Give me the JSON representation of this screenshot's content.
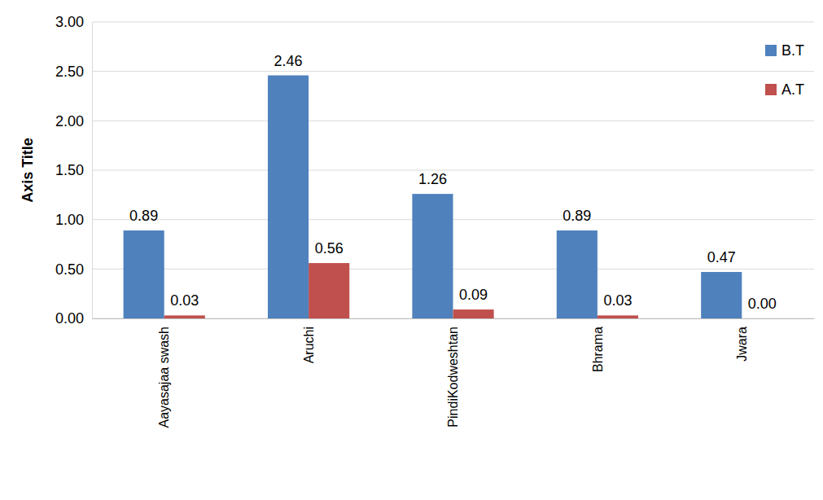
{
  "chart_data": {
    "type": "bar",
    "ylabel": "Axis Title",
    "categories": [
      "Aayasajaa swash",
      "Aruchi",
      "PindiKodweshtan",
      "Bhrama",
      "Jwara"
    ],
    "series": [
      {
        "name": "B.T",
        "color": "#4f81bd",
        "values": [
          0.89,
          2.46,
          1.26,
          0.89,
          0.47
        ],
        "value_labels": [
          "0.89",
          "2.46",
          "1.26",
          "0.89",
          "0.47"
        ]
      },
      {
        "name": "A.T",
        "color": "#c0504d",
        "values": [
          0.03,
          0.56,
          0.09,
          0.03,
          0
        ],
        "value_labels": [
          "0.03",
          "0.56",
          "0.09",
          "0.03",
          "0.00"
        ]
      }
    ],
    "ylim": [
      0,
      3
    ],
    "yticks": [
      {
        "value": 0,
        "label": "0.00"
      },
      {
        "value": 0.5,
        "label": "0.50"
      },
      {
        "value": 1,
        "label": "1.00"
      },
      {
        "value": 1.5,
        "label": "1.50"
      },
      {
        "value": 2,
        "label": "2.00"
      },
      {
        "value": 2.5,
        "label": "2.50"
      },
      {
        "value": 3,
        "label": "3.00"
      }
    ],
    "grid": true,
    "legend": "upper right",
    "data_labels": true
  }
}
